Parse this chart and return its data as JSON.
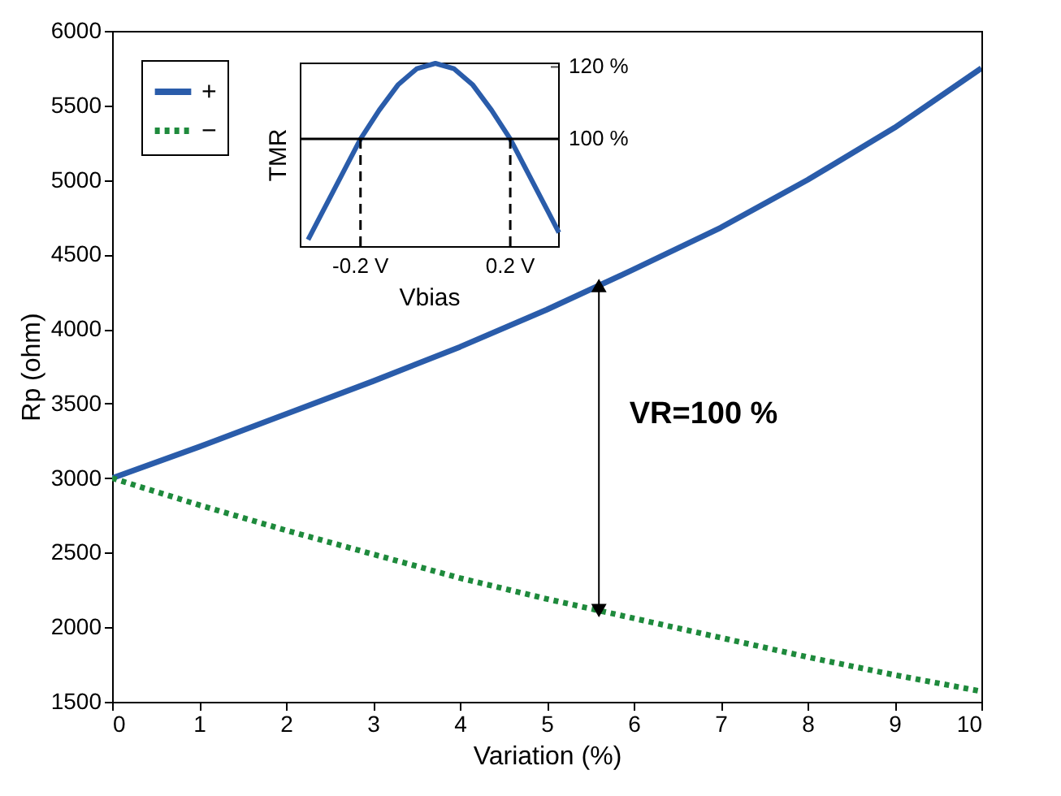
{
  "chart_data": [
    {
      "type": "line",
      "xlabel": "Variation (%)",
      "ylabel": "Rp (ohm)",
      "xlim": [
        0,
        10
      ],
      "ylim": [
        1500,
        6000
      ],
      "xticks": [
        0,
        1,
        2,
        3,
        4,
        5,
        6,
        7,
        8,
        9,
        10
      ],
      "yticks": [
        1500,
        2000,
        2500,
        3000,
        3500,
        4000,
        4500,
        5000,
        5500,
        6000
      ],
      "x": [
        0,
        1,
        2,
        3,
        4,
        5,
        6,
        7,
        8,
        9,
        10
      ],
      "series": [
        {
          "name": "+",
          "color": "#2a5caa",
          "line_style": "solid",
          "values": [
            3000,
            3210,
            3430,
            3650,
            3880,
            4130,
            4400,
            4680,
            5000,
            5350,
            5750
          ]
        },
        {
          "name": "−",
          "color": "#1e8a3c",
          "line_style": "dotted",
          "values": [
            3000,
            2820,
            2650,
            2490,
            2330,
            2190,
            2060,
            1930,
            1800,
            1680,
            1570
          ]
        }
      ],
      "annotations": [
        "VR=100 %"
      ],
      "legend": "top left",
      "grid": false
    },
    {
      "type": "line",
      "xlabel": "Vbias",
      "ylabel": "TMR",
      "xlim": [
        -0.36,
        0.33
      ],
      "ylim": [
        70,
        121
      ],
      "xticks": [
        {
          "value": -0.2,
          "label": "-0.2 V"
        },
        {
          "value": 0.2,
          "label": "0.2 V"
        }
      ],
      "yticks": [
        {
          "value": 100,
          "label": "100 %"
        },
        {
          "value": 120,
          "label": "120 %"
        }
      ],
      "x": [
        -0.34,
        -0.3,
        -0.25,
        -0.2,
        -0.15,
        -0.1,
        -0.05,
        0,
        0.05,
        0.1,
        0.15,
        0.2,
        0.25,
        0.3,
        0.33
      ],
      "series": [
        {
          "color": "#2a5caa",
          "values": [
            72,
            80,
            90,
            100,
            108,
            115,
            119.5,
            121,
            119.5,
            115,
            108,
            100,
            90,
            80,
            74
          ]
        }
      ],
      "ref_lines": [
        {
          "axis": "y",
          "value": 100,
          "color": "#000000",
          "line_style": "solid"
        },
        {
          "axis": "x",
          "value": -0.2,
          "color": "#000000",
          "line_style": "dashed"
        },
        {
          "axis": "x",
          "value": 0.2,
          "color": "#000000",
          "line_style": "dashed"
        }
      ],
      "grid": false
    }
  ]
}
